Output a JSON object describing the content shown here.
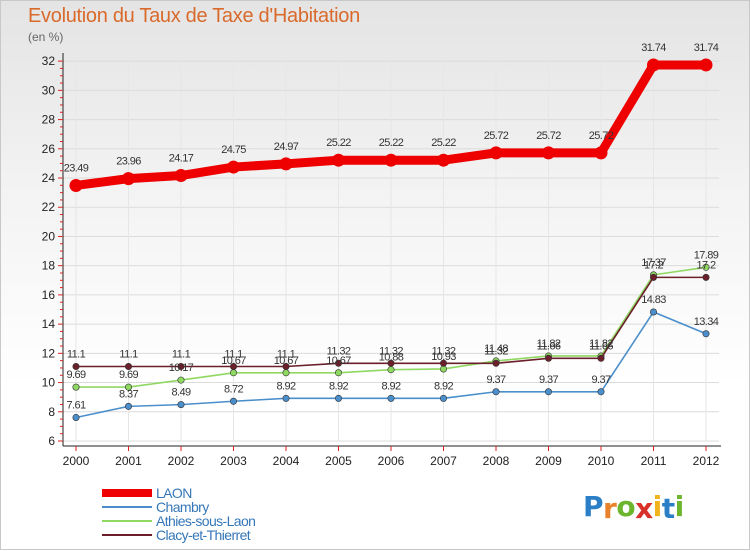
{
  "chart_data": {
    "type": "line",
    "title": "Evolution du Taux de Taxe d'Habitation",
    "ylabel": "(en %)",
    "xlabel": "",
    "categories": [
      "2000",
      "2001",
      "2002",
      "2003",
      "2004",
      "2005",
      "2006",
      "2007",
      "2008",
      "2009",
      "2010",
      "2011",
      "2012"
    ],
    "ylim": [
      6,
      32
    ],
    "yticks": [
      6,
      8,
      10,
      12,
      14,
      16,
      18,
      20,
      22,
      24,
      26,
      28,
      30,
      32
    ],
    "legend_position": "bottom-left",
    "series": [
      {
        "name": "LAON",
        "color": "#ee0000",
        "values": [
          23.49,
          23.96,
          24.17,
          24.75,
          24.97,
          25.22,
          25.22,
          25.22,
          25.72,
          25.72,
          25.72,
          31.74,
          31.74
        ],
        "labels": [
          "23.49",
          "23.96",
          "24.17",
          "24.75",
          "24.97",
          "25.22",
          "25.22",
          "25.22",
          "25.72",
          "25.72",
          "25.72",
          "31.74",
          "31.74"
        ]
      },
      {
        "name": "Chambry",
        "color": "#4a8fcc",
        "values": [
          7.61,
          8.37,
          8.49,
          8.72,
          8.92,
          8.92,
          8.92,
          8.92,
          9.37,
          9.37,
          9.37,
          14.83,
          13.34
        ],
        "labels": [
          "7.61",
          "8.37",
          "8.49",
          "8.72",
          "8.92",
          "8.92",
          "8.92",
          "8.92",
          "9.37",
          "9.37",
          "9.37",
          "14.83",
          "13.34"
        ]
      },
      {
        "name": "Athies-sous-Laon",
        "color": "#8fd862",
        "values": [
          9.69,
          9.69,
          10.17,
          10.67,
          10.67,
          10.67,
          10.88,
          10.93,
          11.48,
          11.82,
          11.82,
          17.37,
          17.89
        ],
        "labels": [
          "9.69",
          "9.69",
          "10.17",
          "10.67",
          "10.67",
          "10.67",
          "10.88",
          "10.93",
          "11.48",
          "11.82",
          "11.82",
          "17.37",
          "17.89"
        ]
      },
      {
        "name": "Clacy-et-Thierret",
        "color": "#6b1f2a",
        "values": [
          11.1,
          11.1,
          11.1,
          11.1,
          11.1,
          11.32,
          11.32,
          11.32,
          11.32,
          11.66,
          11.66,
          17.2,
          17.2
        ],
        "labels": [
          "11.1",
          "11.1",
          "11.1",
          "11.1",
          "11.1",
          "11.32",
          "11.32",
          "11.32",
          "11.32",
          "11.66",
          "11.66",
          "17.2",
          "17.2"
        ]
      }
    ]
  },
  "logo": {
    "text": "Proxiti",
    "colors": [
      "#2a7fc7",
      "#e8812b",
      "#6cb52d",
      "#d8312b",
      "#f0b31d",
      "#2a7fc7",
      "#6cb52d"
    ]
  }
}
